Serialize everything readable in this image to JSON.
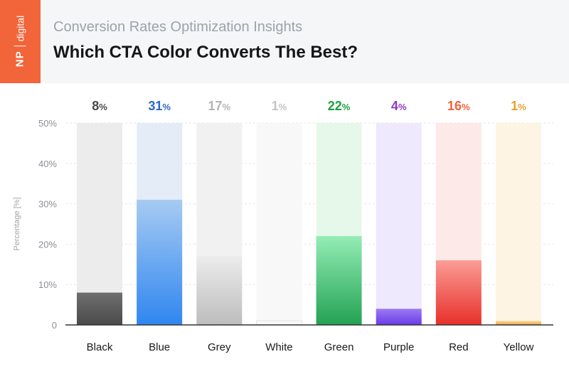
{
  "header": {
    "logo": "NP digital",
    "logo_np": "NP",
    "logo_digital": "digital",
    "subtitle": "Conversion Rates Optimization Insights",
    "title": "Which CTA Color Converts The Best?"
  },
  "colors": {
    "header_bg": "#f5f6f8",
    "logo_bg": "#f2643a"
  },
  "chart_data": {
    "type": "bar",
    "title": "Which CTA Color Converts The Best?",
    "ylabel": "Percentage [%]",
    "ylim": [
      0,
      50
    ],
    "yticks": [
      0,
      10,
      20,
      30,
      40,
      50
    ],
    "ytick_labels": [
      "0",
      "10%",
      "20%",
      "30%",
      "40%",
      "50%"
    ],
    "grid": true,
    "categories": [
      "Black",
      "Blue",
      "Grey",
      "White",
      "Green",
      "Purple",
      "Red",
      "Yellow"
    ],
    "values": [
      8,
      31,
      17,
      1,
      22,
      4,
      16,
      1
    ],
    "value_labels": [
      "8",
      "31",
      "17",
      "1",
      "22",
      "4",
      "16",
      "1"
    ],
    "value_unit": "%",
    "colors": {
      "track": [
        "#ececec",
        "#e4ecf8",
        "#f1f1f1",
        "#f8f8f8",
        "#e6f8ea",
        "#efe9fd",
        "#fde9e7",
        "#fdf4e3"
      ],
      "fill_top": [
        "#6f6f6f",
        "#a7cbf2",
        "#ececec",
        "#fdfdfd",
        "#94edb5",
        "#9c7bf2",
        "#fb9c96",
        "#f7d8a0"
      ],
      "fill_bottom": [
        "#4a4a4a",
        "#2f86f0",
        "#bdbdbd",
        "#f3f3f3",
        "#23a254",
        "#6a3ae8",
        "#e8302a",
        "#efa940"
      ],
      "label": [
        "#4a4a4a",
        "#2a69c6",
        "#b4b4b4",
        "#c4c4c4",
        "#1f9e42",
        "#8e3bc1",
        "#f0623a",
        "#e5a227"
      ]
    }
  }
}
